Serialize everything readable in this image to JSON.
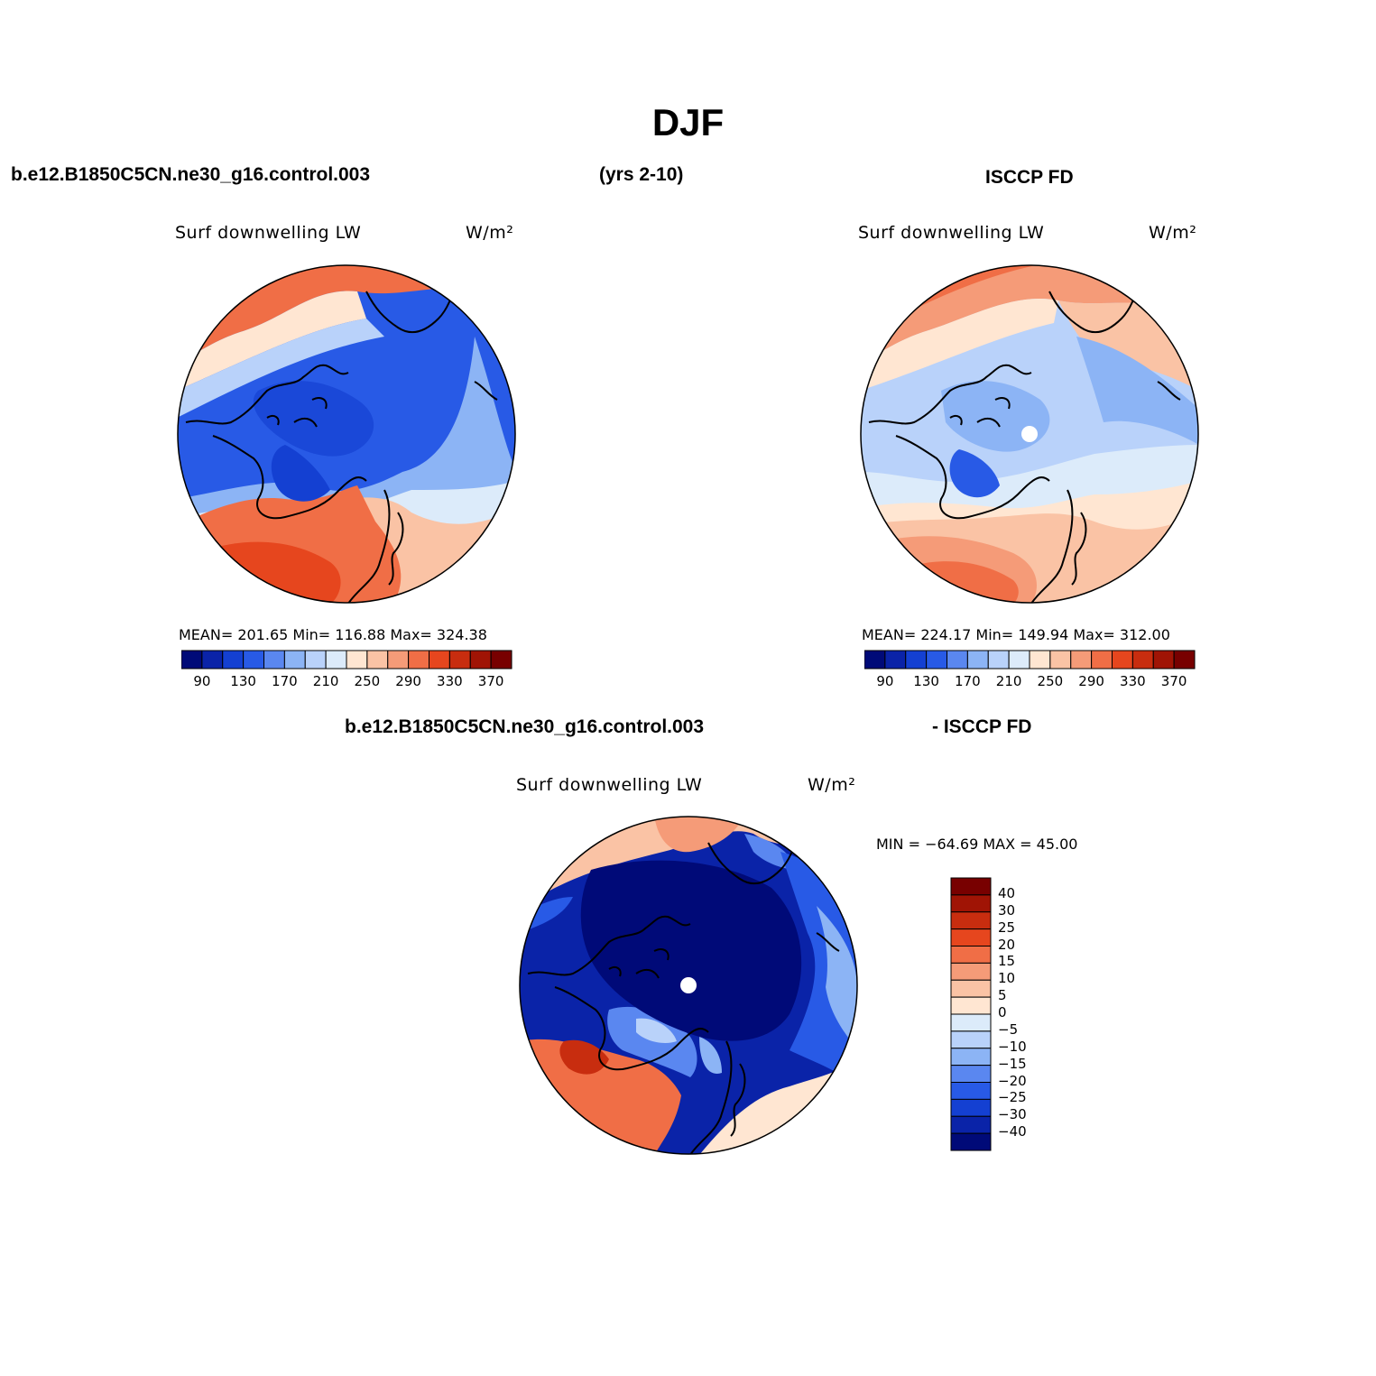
{
  "header": {
    "title": "DJF",
    "case_name": "b.e12.B1850C5CN.ne30_g16.control.003",
    "years": "(yrs 2-10)",
    "obs_name": "ISCCP FD",
    "diff_left": "b.e12.B1850C5CN.ne30_g16.control.003",
    "diff_right": "- ISCCP FD"
  },
  "panels": {
    "model": {
      "field": "Surf downwelling LW",
      "units": "W/m²",
      "stats": "MEAN= 201.65   Min= 116.88   Max= 324.38"
    },
    "obs": {
      "field": "Surf downwelling LW",
      "units": "W/m²",
      "stats": "MEAN= 224.17   Min= 149.94   Max= 312.00"
    },
    "diff": {
      "field": "Surf downwelling LW",
      "units": "W/m²",
      "stats": "MIN = −64.69 MAX =  45.00"
    }
  },
  "colorbars": {
    "absolute": {
      "colors": [
        "#000a78",
        "#0a23a8",
        "#1440d2",
        "#285ae6",
        "#5a87f0",
        "#8cb4f5",
        "#b9d2fa",
        "#dcebfa",
        "#ffe6d2",
        "#fac3a5",
        "#f59b78",
        "#f06e46",
        "#e6461e",
        "#c82d0f",
        "#a01405",
        "#780000"
      ],
      "tick_labels": [
        "90",
        "130",
        "170",
        "210",
        "250",
        "290",
        "330",
        "370"
      ]
    },
    "difference": {
      "colors": [
        "#000a78",
        "#0a23a8",
        "#1440d2",
        "#285ae6",
        "#5a87f0",
        "#8cb4f5",
        "#b9d2fa",
        "#dcebfa",
        "#ffe6d2",
        "#fac3a5",
        "#f59b78",
        "#f06e46",
        "#e6461e",
        "#c82d0f",
        "#a01405",
        "#780000"
      ],
      "tick_labels": [
        "40",
        "30",
        "25",
        "20",
        "15",
        "10",
        "5",
        "0",
        "−5",
        "−10",
        "−15",
        "−20",
        "−25",
        "−30",
        "−40"
      ]
    }
  }
}
